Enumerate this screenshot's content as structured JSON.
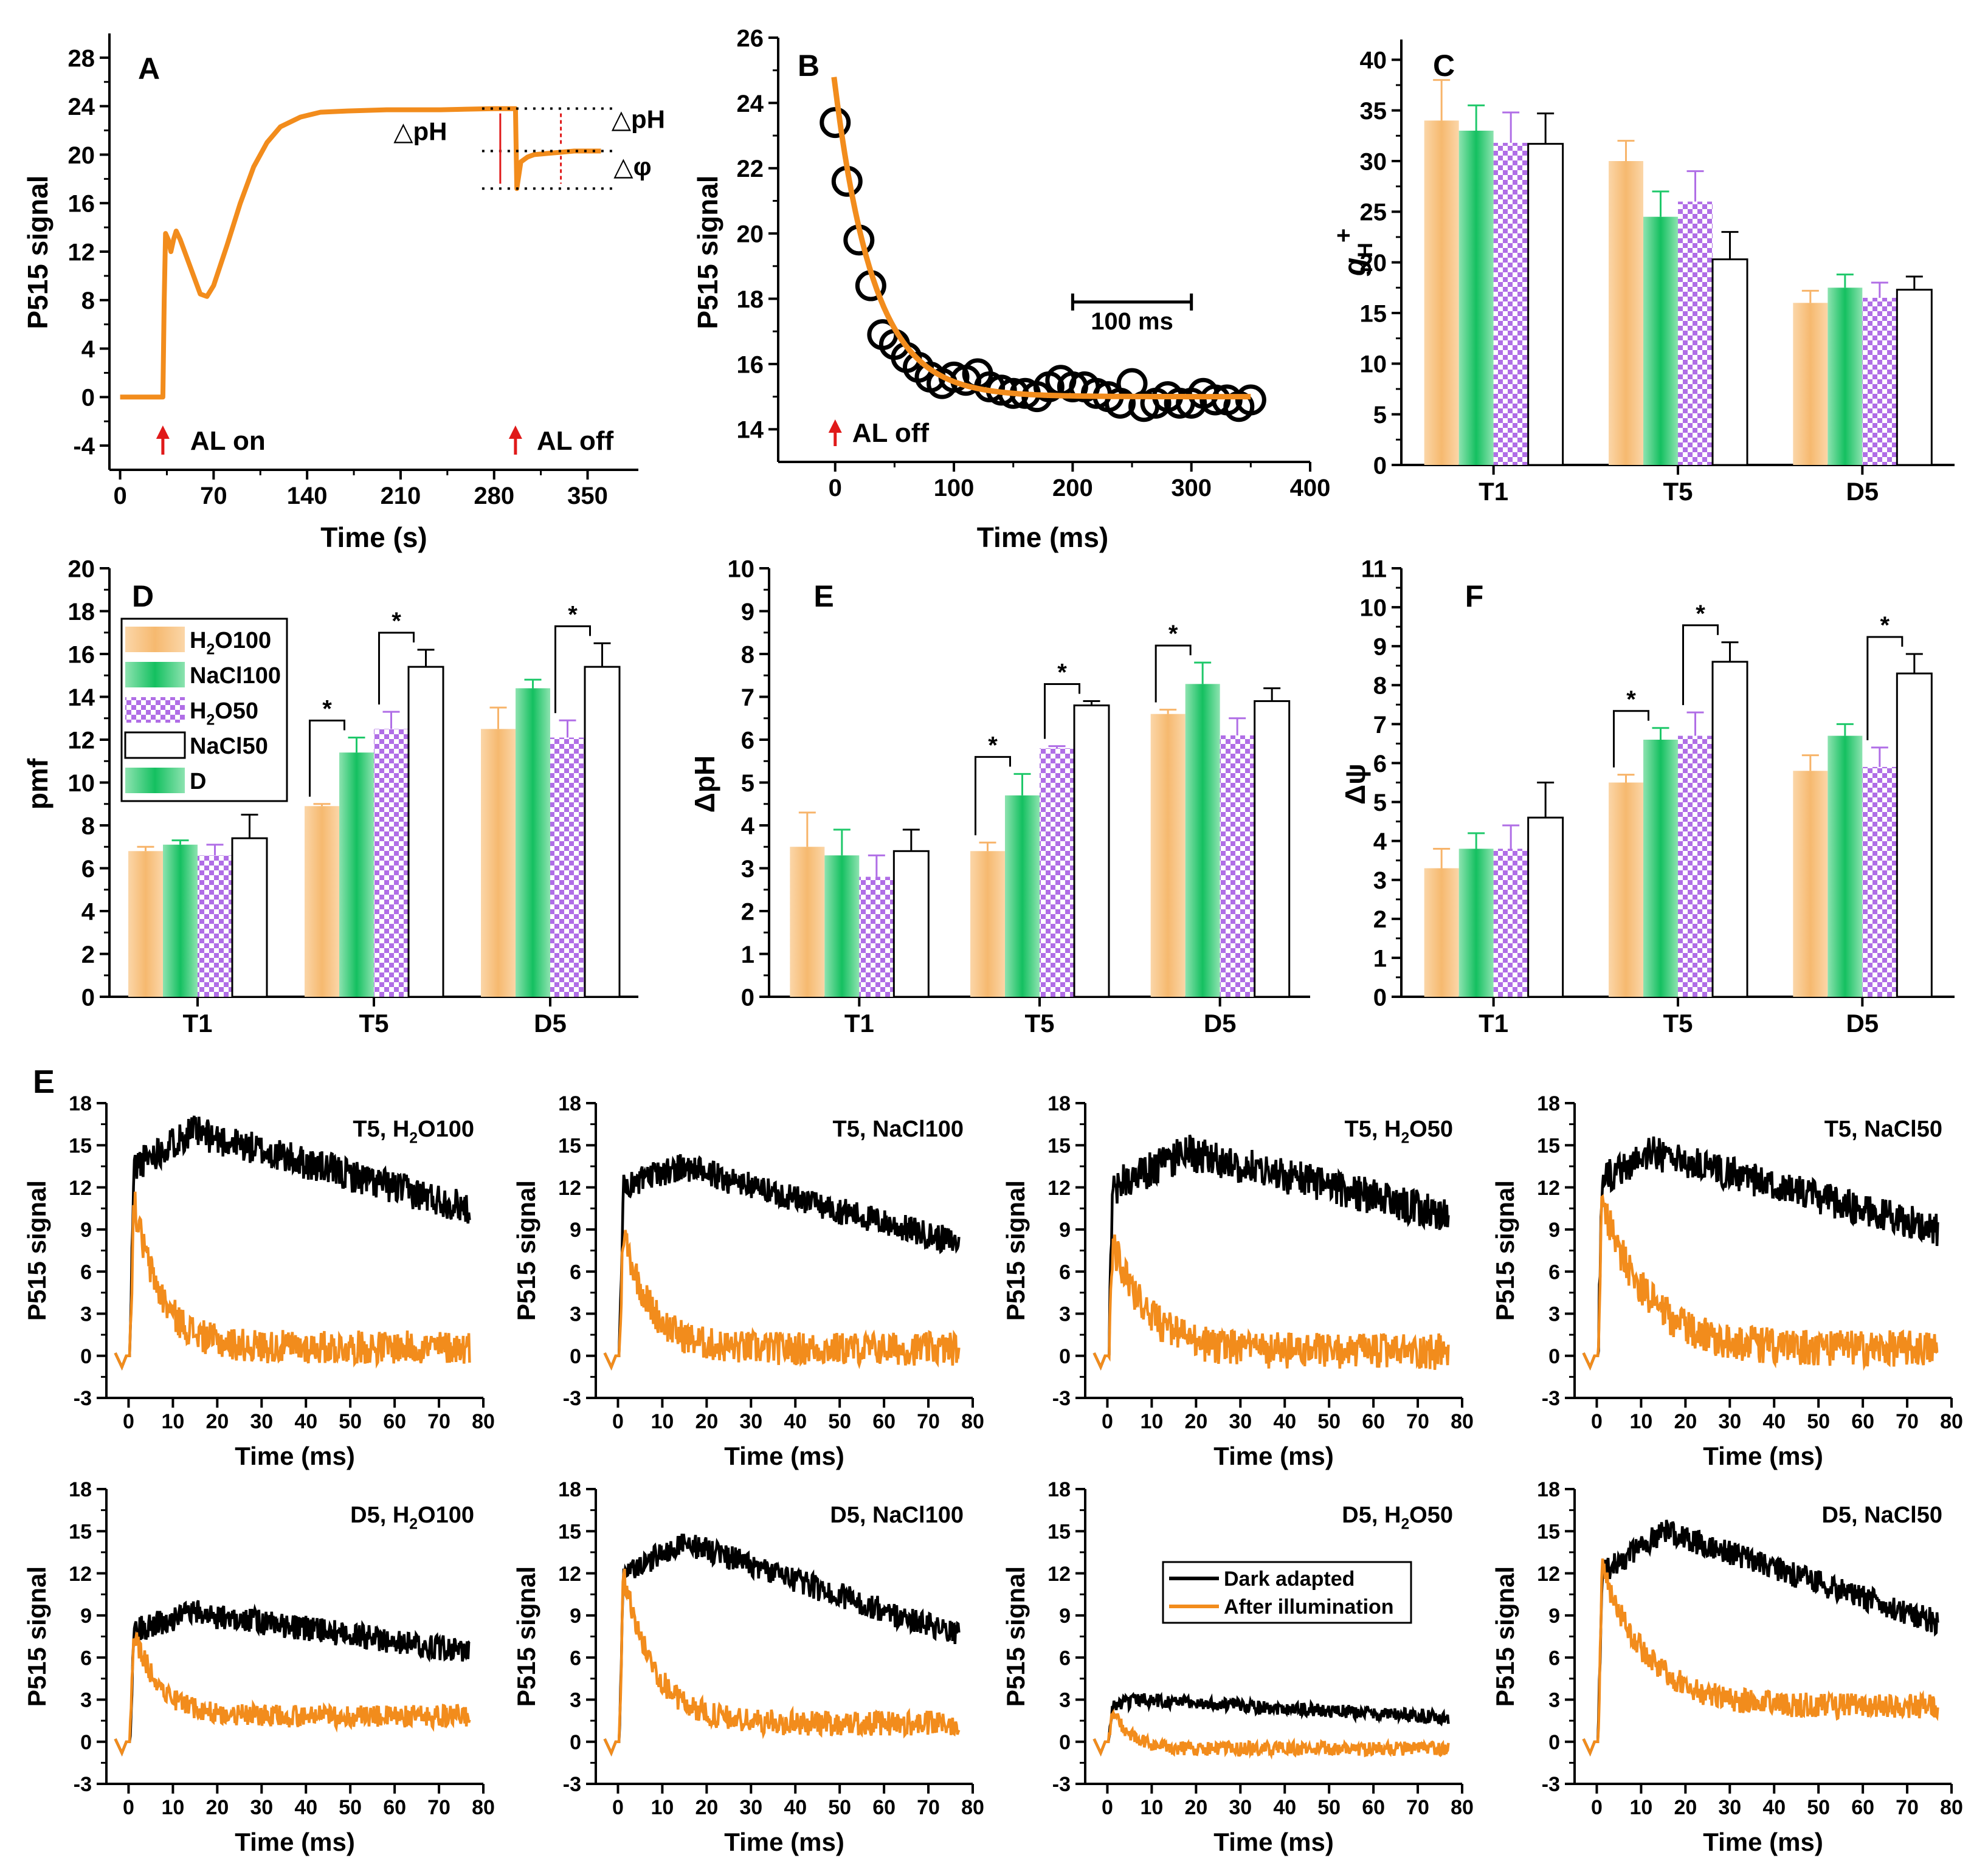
{
  "colors": {
    "orange": "#f28c1c",
    "orange_bar": "#f7c58a",
    "green": "#1fc86a",
    "purple": "#b06ee6",
    "white": "#ffffff",
    "black": "#000000",
    "red": "#e01a1a"
  },
  "chart_data": [
    {
      "id": "A",
      "type": "line",
      "label": "A",
      "xlabel": "Time (s)",
      "ylabel": "P515 signal",
      "xlim": [
        -8,
        388
      ],
      "ylim": [
        -6,
        30
      ],
      "xticks": [
        0,
        70,
        140,
        210,
        280,
        350
      ],
      "yticks": [
        -4,
        0,
        4,
        8,
        12,
        16,
        20,
        24,
        28
      ],
      "series": [
        {
          "name": "P515 trace",
          "color": "orange",
          "x": [
            0,
            32,
            33,
            34,
            36,
            38,
            40,
            42,
            45,
            50,
            55,
            60,
            65,
            70,
            80,
            90,
            100,
            110,
            120,
            135,
            150,
            170,
            200,
            240,
            280,
            296,
            297,
            300,
            305,
            310,
            320,
            330,
            340,
            360
          ],
          "y": [
            0,
            0,
            8,
            13.5,
            13,
            12,
            13,
            13.7,
            13,
            11.5,
            10,
            8.5,
            8.3,
            9.2,
            12.5,
            16,
            19,
            21,
            22.3,
            23.1,
            23.5,
            23.6,
            23.7,
            23.7,
            23.8,
            23.8,
            17.2,
            19.4,
            19.8,
            20,
            20.1,
            20.2,
            20.3,
            20.3
          ]
        }
      ],
      "annotations": [
        "AL on",
        "AL off",
        "△pH",
        "△pH",
        "△φ"
      ],
      "markers": {
        "al_on": 32,
        "al_off": 296
      }
    },
    {
      "id": "B",
      "type": "scatter",
      "label": "B",
      "xlabel": "Time (ms)",
      "ylabel": "P515 signal",
      "xlim": [
        -48,
        400
      ],
      "ylim": [
        13,
        26
      ],
      "xticks": [
        0,
        100,
        200,
        300,
        400
      ],
      "yticks": [
        14,
        16,
        18,
        20,
        22,
        24,
        26
      ],
      "points": {
        "x": [
          0,
          10,
          20,
          30,
          40,
          50,
          60,
          70,
          80,
          90,
          100,
          110,
          120,
          130,
          140,
          150,
          160,
          170,
          180,
          190,
          200,
          210,
          220,
          230,
          240,
          250,
          260,
          270,
          280,
          290,
          300,
          310,
          320,
          330,
          340,
          350
        ],
        "y": [
          23.4,
          21.6,
          19.8,
          18.4,
          16.9,
          16.6,
          16.2,
          15.9,
          15.6,
          15.4,
          15.6,
          15.5,
          15.7,
          15.3,
          15.2,
          15.1,
          15.1,
          15.0,
          15.3,
          15.5,
          15.3,
          15.3,
          15.1,
          15.0,
          14.8,
          15.4,
          14.7,
          14.8,
          15.0,
          14.8,
          14.8,
          15.1,
          14.9,
          14.9,
          14.7,
          14.9
        ]
      },
      "fit": {
        "a": 24.5,
        "b": 15.0,
        "tau": 33,
        "color": "orange"
      },
      "annotations": [
        "AL off",
        "100 ms"
      ]
    },
    {
      "id": "C",
      "type": "bar",
      "label": "C",
      "xlabel": "",
      "ylabel": "gH+",
      "ylim": [
        0,
        42
      ],
      "yticks": [
        0,
        5,
        10,
        15,
        20,
        25,
        30,
        35,
        40
      ],
      "categories": [
        "T1",
        "T5",
        "D5"
      ],
      "series": [
        {
          "name": "H2O100",
          "fill": "orange",
          "values": [
            34.0,
            30.0,
            16.0
          ],
          "errors": [
            4.0,
            2.0,
            1.2
          ]
        },
        {
          "name": "NaCl100",
          "fill": "green",
          "values": [
            33.0,
            24.5,
            17.5
          ],
          "errors": [
            2.5,
            2.5,
            1.3
          ]
        },
        {
          "name": "H2O50",
          "fill": "checker",
          "values": [
            31.8,
            26.0,
            16.5
          ],
          "errors": [
            3.0,
            3.0,
            1.5
          ]
        },
        {
          "name": "NaCl50",
          "fill": "white",
          "values": [
            31.7,
            20.3,
            17.3
          ],
          "errors": [
            3.0,
            2.7,
            1.3
          ]
        }
      ]
    },
    {
      "id": "D",
      "type": "bar",
      "label": "D",
      "xlabel": "",
      "ylabel": "pmf",
      "ylim": [
        0,
        20
      ],
      "yticks": [
        0,
        2,
        4,
        6,
        8,
        10,
        12,
        14,
        16,
        18,
        20
      ],
      "categories": [
        "T1",
        "T5",
        "D5"
      ],
      "series": [
        {
          "name": "H2O100",
          "fill": "orange",
          "values": [
            6.8,
            8.9,
            12.5
          ],
          "errors": [
            0.2,
            0.1,
            1.0
          ]
        },
        {
          "name": "NaCl100",
          "fill": "green",
          "values": [
            7.1,
            11.4,
            14.4
          ],
          "errors": [
            0.2,
            0.7,
            0.4
          ]
        },
        {
          "name": "H2O50",
          "fill": "checker",
          "values": [
            6.6,
            12.5,
            12.1
          ],
          "errors": [
            0.5,
            0.8,
            0.8
          ]
        },
        {
          "name": "NaCl50",
          "fill": "white",
          "values": [
            7.4,
            15.4,
            15.4
          ],
          "errors": [
            1.1,
            0.8,
            1.1
          ]
        }
      ],
      "significance": [
        {
          "cat": 1,
          "a": 0,
          "b": 1
        },
        {
          "cat": 1,
          "a": 2,
          "b": 3
        },
        {
          "cat": 2,
          "a": 2,
          "b": 3
        }
      ],
      "legend": {
        "entries": [
          {
            "sym": "orange",
            "base": "H",
            "sub": "2",
            "rest": "O100"
          },
          {
            "sym": "green",
            "base": "NaCl100",
            "sub": "",
            "rest": ""
          },
          {
            "sym": "checker",
            "base": "H",
            "sub": "2",
            "rest": "O50"
          },
          {
            "sym": "white",
            "base": "NaCl50",
            "sub": "",
            "rest": ""
          },
          {
            "sym": "green",
            "base": "D",
            "sub": "",
            "rest": ""
          }
        ]
      }
    },
    {
      "id": "E",
      "type": "bar",
      "label": "E",
      "xlabel": "",
      "ylabel": "ΔpH",
      "ylim": [
        0,
        10
      ],
      "yticks": [
        0,
        1,
        2,
        3,
        4,
        5,
        6,
        7,
        8,
        9,
        10
      ],
      "categories": [
        "T1",
        "T5",
        "D5"
      ],
      "series": [
        {
          "name": "H2O100",
          "fill": "orange",
          "values": [
            3.5,
            3.4,
            6.6
          ],
          "errors": [
            0.8,
            0.2,
            0.1
          ]
        },
        {
          "name": "NaCl100",
          "fill": "green",
          "values": [
            3.3,
            4.7,
            7.3
          ],
          "errors": [
            0.6,
            0.5,
            0.5
          ]
        },
        {
          "name": "H2O50",
          "fill": "checker",
          "values": [
            2.8,
            5.8,
            6.1
          ],
          "errors": [
            0.5,
            0.05,
            0.4
          ]
        },
        {
          "name": "NaCl50",
          "fill": "white",
          "values": [
            3.4,
            6.8,
            6.9
          ],
          "errors": [
            0.5,
            0.1,
            0.3
          ]
        }
      ],
      "significance": [
        {
          "cat": 1,
          "a": 0,
          "b": 1
        },
        {
          "cat": 1,
          "a": 2,
          "b": 3
        },
        {
          "cat": 2,
          "a": 0,
          "b": 1
        }
      ]
    },
    {
      "id": "F",
      "type": "bar",
      "label": "F",
      "xlabel": "",
      "ylabel": "Δψ",
      "ylim": [
        0,
        11
      ],
      "yticks": [
        0,
        1,
        2,
        3,
        4,
        5,
        6,
        7,
        8,
        9,
        10,
        11
      ],
      "categories": [
        "T1",
        "T5",
        "D5"
      ],
      "series": [
        {
          "name": "H2O100",
          "fill": "orange",
          "values": [
            3.3,
            5.5,
            5.8
          ],
          "errors": [
            0.5,
            0.2,
            0.4
          ]
        },
        {
          "name": "NaCl100",
          "fill": "green",
          "values": [
            3.8,
            6.6,
            6.7
          ],
          "errors": [
            0.4,
            0.3,
            0.3
          ]
        },
        {
          "name": "H2O50",
          "fill": "checker",
          "values": [
            3.8,
            6.7,
            5.9
          ],
          "errors": [
            0.6,
            0.6,
            0.5
          ]
        },
        {
          "name": "NaCl50",
          "fill": "white",
          "values": [
            4.6,
            8.6,
            8.3
          ],
          "errors": [
            0.9,
            0.5,
            0.5
          ]
        }
      ],
      "significance": [
        {
          "cat": 1,
          "a": 0,
          "b": 1
        },
        {
          "cat": 1,
          "a": 2,
          "b": 3
        },
        {
          "cat": 2,
          "a": 2,
          "b": 3
        }
      ]
    },
    {
      "id": "G",
      "type": "line",
      "label": "E",
      "xlabel": "Time (ms)",
      "ylabel": "P515 signal",
      "xlim": [
        -5,
        80
      ],
      "ylim": [
        -3,
        18
      ],
      "xticks": [
        0,
        10,
        20,
        30,
        40,
        50,
        60,
        70,
        80
      ],
      "yticks": [
        -3,
        0,
        3,
        6,
        9,
        12,
        15,
        18
      ],
      "panels": [
        {
          "title_base": "T5, H",
          "title_sub": "2",
          "title_rest": "O100",
          "dark": [
            13.5,
            16,
            14,
            10.5,
            1.2
          ],
          "light": [
            11,
            0,
            6,
            0.6,
            1.2
          ],
          "seed": 11
        },
        {
          "title_base": "T5, NaCl100",
          "title_sub": "",
          "title_rest": "",
          "dark": [
            12,
            13.5,
            14,
            8.0,
            1.0
          ],
          "light": [
            9,
            0,
            6,
            0.5,
            1.2
          ],
          "seed": 23
        },
        {
          "title_base": "T5, H",
          "title_sub": "2",
          "title_rest": "O50",
          "dark": [
            12,
            14.5,
            18,
            10.0,
            1.3
          ],
          "light": [
            8,
            0,
            8,
            0.3,
            1.3
          ],
          "seed": 37
        },
        {
          "title_base": "T5, NaCl50",
          "title_sub": "",
          "title_rest": "",
          "dark": [
            12.5,
            14.5,
            12,
            9.0,
            1.2
          ],
          "light": [
            11,
            0,
            10,
            0.5,
            1.3
          ],
          "seed": 41
        },
        {
          "title_base": "D5, H",
          "title_sub": "2",
          "title_rest": "O100",
          "dark": [
            8,
            9.2,
            15,
            6.4,
            0.9
          ],
          "light": [
            7.8,
            0,
            6,
            1.8,
            0.8
          ],
          "seed": 53
        },
        {
          "title_base": "D5, NaCl100",
          "title_sub": "",
          "title_rest": "",
          "dark": [
            12,
            14.2,
            15,
            7.5,
            0.9
          ],
          "light": [
            12,
            0,
            7,
            1.3,
            0.9
          ],
          "seed": 67
        },
        {
          "title_base": "D5, H",
          "title_sub": "2",
          "title_rest": "O50",
          "dark": [
            2.6,
            3.0,
            8,
            1.7,
            0.5
          ],
          "light": [
            2.2,
            0,
            4,
            -0.5,
            0.5
          ],
          "seed": 79
        },
        {
          "title_base": "D5, NaCl50",
          "title_sub": "",
          "title_rest": "",
          "dark": [
            12,
            15,
            15,
            8.5,
            0.9
          ],
          "light": [
            12.5,
            0,
            10,
            2.5,
            0.9
          ],
          "seed": 83
        }
      ],
      "legend": [
        "Dark adapted",
        "After illumination"
      ]
    }
  ]
}
